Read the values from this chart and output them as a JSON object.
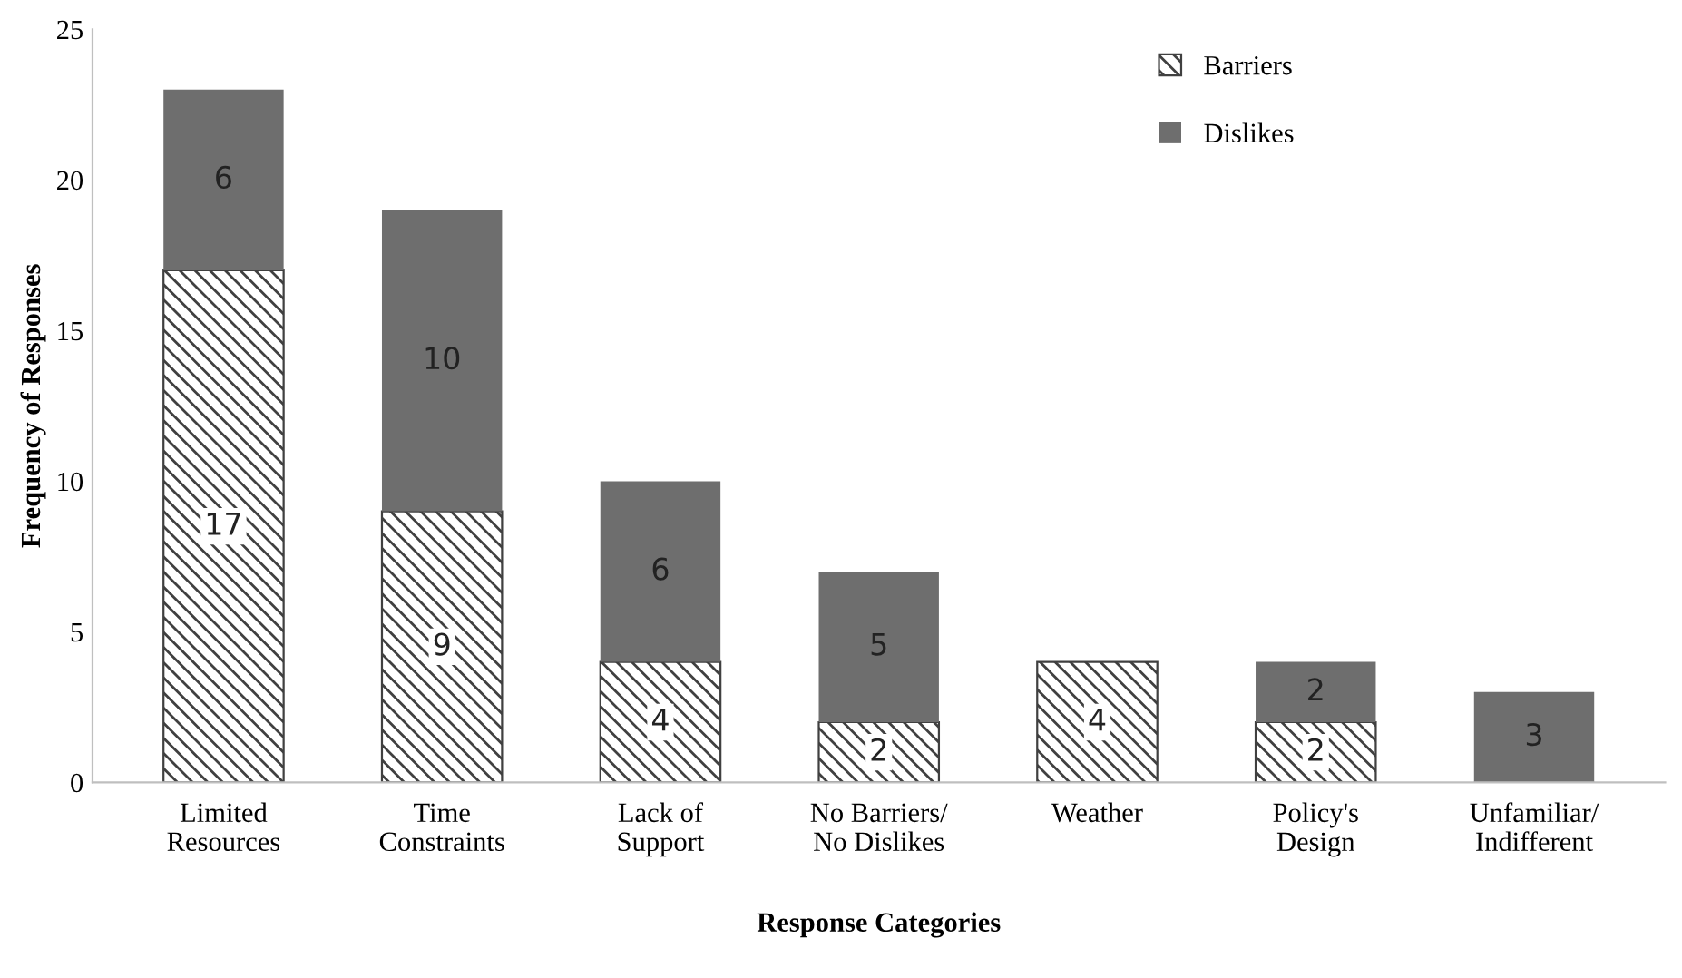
{
  "chart_data": {
    "type": "bar",
    "stacked": true,
    "xlabel": "Response Categories",
    "ylabel": "Frequency of Responses",
    "categories": [
      "Limited\nResources",
      "Time\nConstraints",
      "Lack of\nSupport",
      "No Barriers/\nNo Dislikes",
      "Weather",
      "Policy's\nDesign",
      "Unfamiliar/\nIndifferent"
    ],
    "series": [
      {
        "name": "Barriers",
        "color": "#404040",
        "values": [
          17,
          9,
          4,
          2,
          4,
          2,
          null
        ]
      },
      {
        "name": "Dislikes",
        "color": "#6e6e6e",
        "values": [
          6,
          10,
          6,
          5,
          null,
          2,
          3
        ]
      }
    ],
    "ylim": [
      0,
      25
    ],
    "yticks": [
      0,
      5,
      10,
      15,
      20,
      25
    ],
    "grid": false,
    "legend": "top right",
    "data_labels": true
  }
}
